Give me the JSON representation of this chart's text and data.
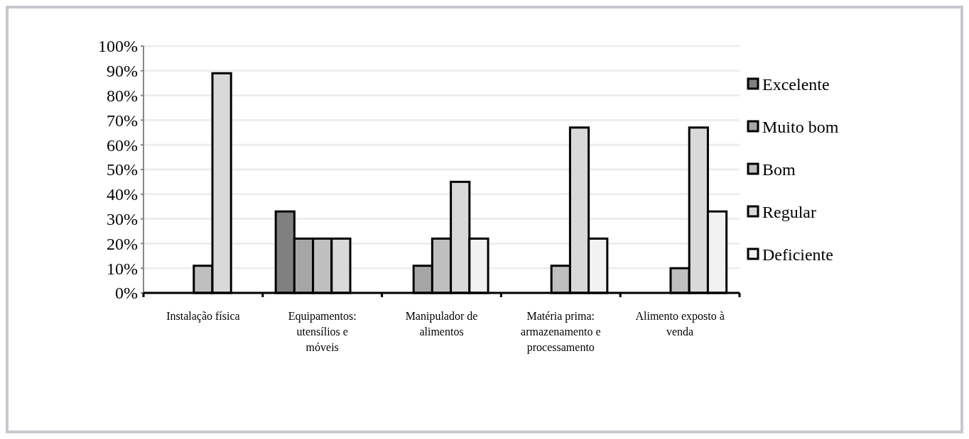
{
  "chart_data": {
    "type": "bar",
    "categories": [
      "Instalação física",
      "Equipamentos: utensílios e móveis",
      "Manipulador de alimentos",
      "Matéria prima: armazenamento e processamento",
      "Alimento exposto à venda"
    ],
    "series": [
      {
        "name": "Excelente",
        "color": "#808080",
        "values": [
          null,
          33,
          null,
          null,
          null
        ]
      },
      {
        "name": "Muito bom",
        "color": "#a6a6a6",
        "values": [
          null,
          22,
          11,
          null,
          null
        ]
      },
      {
        "name": "Bom",
        "color": "#bfbfbf",
        "values": [
          11,
          22,
          22,
          11,
          10
        ]
      },
      {
        "name": "Regular",
        "color": "#d9d9d9",
        "values": [
          89,
          22,
          45,
          67,
          67
        ]
      },
      {
        "name": "Deficiente",
        "color": "#f2f2f2",
        "values": [
          null,
          null,
          22,
          22,
          33
        ]
      }
    ],
    "ylim": [
      0,
      100
    ],
    "yticks": [
      {
        "value": 0,
        "label": "0%"
      },
      {
        "value": 10,
        "label": "10%"
      },
      {
        "value": 20,
        "label": "20%"
      },
      {
        "value": 30,
        "label": "30%"
      },
      {
        "value": 40,
        "label": "40%"
      },
      {
        "value": 50,
        "label": "50%"
      },
      {
        "value": 60,
        "label": "60%"
      },
      {
        "value": 70,
        "label": "70%"
      },
      {
        "value": 80,
        "label": "80%"
      },
      {
        "value": 90,
        "label": "90%"
      },
      {
        "value": 100,
        "label": "100%"
      }
    ],
    "grid": "y",
    "legend": "right"
  }
}
